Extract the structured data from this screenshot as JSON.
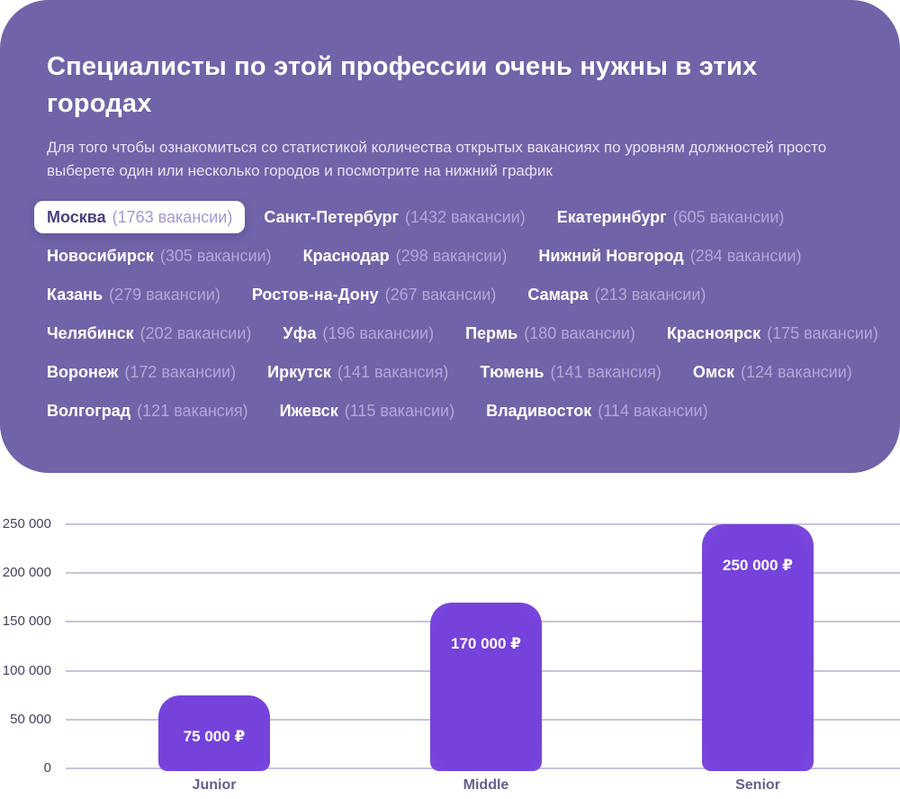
{
  "colors": {
    "card_background": "#7263A9",
    "bar_purple": "#7B47E0",
    "selected_chip_background": "#FFFFFF",
    "selected_chip_text": "#4C3F7E",
    "chip_count_text": "#B2A7D8",
    "grid_line": "#C9C2DC",
    "axis_tick_text": "#46405F",
    "x_axis_label_text": "#665E8E"
  },
  "card": {
    "title": "Специалисты по этой профессии очень нужны в этих городах",
    "subtitle": "Для того чтобы ознакомиться со статистикой количества открытых вакансиях по уровням должностей просто выберете один или несколько городов и посмотрите на нижний график",
    "city_rows": [
      [
        {
          "name": "Москва",
          "count": "(1763 вакансии)",
          "selected": true
        },
        {
          "name": "Санкт-Петербург",
          "count": "(1432 вакансии)",
          "selected": false
        },
        {
          "name": "Екатеринбург",
          "count": "(605 вакансии)",
          "selected": false
        }
      ],
      [
        {
          "name": "Новосибирск",
          "count": "(305 вакансии)",
          "selected": false
        },
        {
          "name": "Краснодар",
          "count": "(298 вакансии)",
          "selected": false
        },
        {
          "name": "Нижний Новгород",
          "count": "(284 вакансии)",
          "selected": false
        }
      ],
      [
        {
          "name": "Казань",
          "count": "(279 вакансии)",
          "selected": false
        },
        {
          "name": "Ростов-на-Дону",
          "count": "(267 вакансии)",
          "selected": false
        },
        {
          "name": "Самара",
          "count": "(213 вакансии)",
          "selected": false
        }
      ],
      [
        {
          "name": "Челябинск",
          "count": "(202 вакансии)",
          "selected": false
        },
        {
          "name": "Уфа",
          "count": "(196 вакансии)",
          "selected": false
        },
        {
          "name": "Пермь",
          "count": "(180 вакансии)",
          "selected": false
        },
        {
          "name": "Красноярск",
          "count": "(175 вакансии)",
          "selected": false
        }
      ],
      [
        {
          "name": "Воронеж",
          "count": "(172 вакансии)",
          "selected": false
        },
        {
          "name": "Иркутск",
          "count": "(141 вакансия)",
          "selected": false
        },
        {
          "name": "Тюмень",
          "count": "(141 вакансия)",
          "selected": false
        },
        {
          "name": "Омск",
          "count": "(124 вакансии)",
          "selected": false
        }
      ],
      [
        {
          "name": "Волгоград",
          "count": "(121 вакансия)",
          "selected": false
        },
        {
          "name": "Ижевск",
          "count": "(115 вакансии)",
          "selected": false
        },
        {
          "name": "Владивосток",
          "count": "(114 вакансии)",
          "selected": false
        }
      ]
    ]
  },
  "chart_data": {
    "type": "bar",
    "categories": [
      "Junior",
      "Middle",
      "Senior"
    ],
    "values": [
      75000,
      170000,
      250000
    ],
    "value_labels": [
      "75 000 ₽",
      "170 000 ₽",
      "250 000 ₽"
    ],
    "y_tick_labels": [
      "250 000",
      "200 000",
      "150 000",
      "100 000",
      "50 000",
      "0"
    ],
    "ylim": [
      0,
      250000
    ],
    "title": "",
    "xlabel": "",
    "ylabel": "",
    "grid": "horizontal",
    "legend": "none",
    "bar_color": "#7B47E0"
  }
}
